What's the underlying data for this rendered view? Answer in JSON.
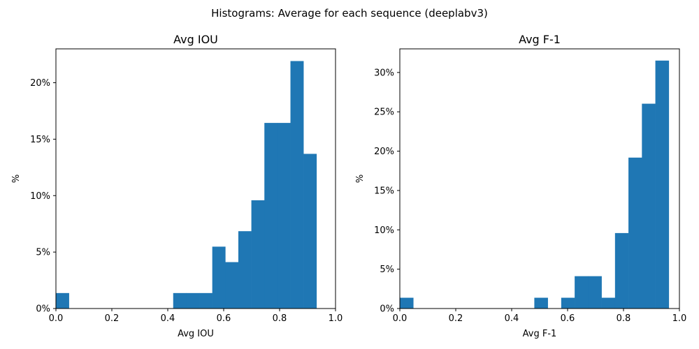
{
  "figure": {
    "suptitle": "Histograms: Average for each sequence (deeplabv3)"
  },
  "chart_data": [
    {
      "type": "bar",
      "title": "Avg IOU",
      "xlabel": "Avg IOU",
      "ylabel": "%",
      "xlim": [
        0,
        1
      ],
      "ylim": [
        0,
        23
      ],
      "x_ticks": [
        0,
        0.2,
        0.4,
        0.6,
        0.8,
        1
      ],
      "x_tick_labels": [
        "0.0",
        "0.2",
        "0.4",
        "0.6",
        "0.8",
        "1.0"
      ],
      "y_ticks": [
        0,
        5,
        10,
        15,
        20
      ],
      "y_tick_labels": [
        "0%",
        "5%",
        "10%",
        "15%",
        "20%"
      ],
      "color": "#1f77b4",
      "bin_edges": [
        0.0,
        0.0466,
        0.0932,
        0.1398,
        0.1864,
        0.233,
        0.2796,
        0.3262,
        0.3728,
        0.4194,
        0.466,
        0.5126,
        0.5592,
        0.6058,
        0.6524,
        0.699,
        0.7456,
        0.7922,
        0.8388,
        0.8854,
        0.932
      ],
      "values": [
        1.37,
        0,
        0,
        0,
        0,
        0,
        0,
        0,
        0,
        1.37,
        1.37,
        1.37,
        5.48,
        4.11,
        6.85,
        9.59,
        16.44,
        16.44,
        21.92,
        13.7
      ]
    },
    {
      "type": "bar",
      "title": "Avg F-1",
      "xlabel": "Avg F-1",
      "ylabel": "%",
      "xlim": [
        0,
        1
      ],
      "ylim": [
        0,
        33
      ],
      "x_ticks": [
        0,
        0.2,
        0.4,
        0.6,
        0.8,
        1
      ],
      "x_tick_labels": [
        "0.0",
        "0.2",
        "0.4",
        "0.6",
        "0.8",
        "1.0"
      ],
      "y_ticks": [
        0,
        5,
        10,
        15,
        20,
        25,
        30
      ],
      "y_tick_labels": [
        "0%",
        "5%",
        "10%",
        "15%",
        "20%",
        "25%",
        "30%"
      ],
      "color": "#1f77b4",
      "bin_edges": [
        0.0,
        0.0481,
        0.0962,
        0.1443,
        0.1924,
        0.2405,
        0.2886,
        0.3367,
        0.3848,
        0.4329,
        0.481,
        0.5291,
        0.5772,
        0.6253,
        0.6734,
        0.7215,
        0.7696,
        0.8177,
        0.8658,
        0.9139,
        0.962
      ],
      "values": [
        1.37,
        0,
        0,
        0,
        0,
        0,
        0,
        0,
        0,
        0,
        1.37,
        0,
        1.37,
        4.11,
        4.11,
        1.37,
        9.59,
        19.18,
        26.03,
        31.51
      ]
    }
  ]
}
